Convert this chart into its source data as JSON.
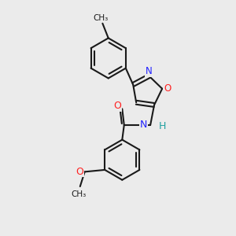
{
  "background_color": "#ebebeb",
  "bond_color": "#1a1a1a",
  "bond_width": 1.5,
  "colors": {
    "O_red": "#ff2020",
    "N_blue": "#2020ff",
    "H_teal": "#20a0a0",
    "C": "#1a1a1a"
  },
  "xlim": [
    -1.8,
    2.4
  ],
  "ylim": [
    -3.2,
    2.8
  ]
}
